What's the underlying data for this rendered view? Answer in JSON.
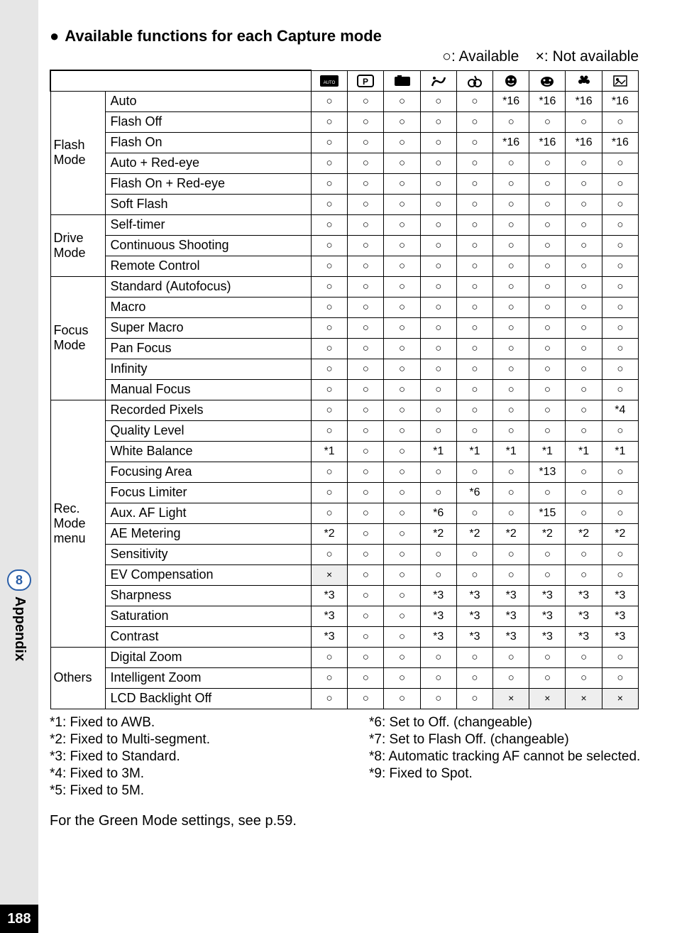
{
  "page_number": "188",
  "side_tab_number": "8",
  "side_tab_label": "Appendix",
  "title_bullet": "●",
  "title": "Available functions for each Capture mode",
  "legend_available_symbol": "○",
  "legend_available_text": ": Available",
  "legend_not_symbol": "×",
  "legend_not_text": ": Not available",
  "column_icons": [
    "AUTO PICT",
    "P",
    "Tv-like",
    "Night",
    "Movie",
    "Face1",
    "Face2",
    "Flower",
    "Frame"
  ],
  "groups": [
    {
      "name": "Flash Mode",
      "rows": [
        {
          "label": "Auto",
          "cells": [
            "○",
            "○",
            "○",
            "○",
            "○",
            "*16",
            "*16",
            "*16",
            "*16"
          ]
        },
        {
          "label": "Flash Off",
          "cells": [
            "○",
            "○",
            "○",
            "○",
            "○",
            "○",
            "○",
            "○",
            "○"
          ]
        },
        {
          "label": "Flash On",
          "cells": [
            "○",
            "○",
            "○",
            "○",
            "○",
            "*16",
            "*16",
            "*16",
            "*16"
          ]
        },
        {
          "label": "Auto + Red-eye",
          "cells": [
            "○",
            "○",
            "○",
            "○",
            "○",
            "○",
            "○",
            "○",
            "○"
          ]
        },
        {
          "label": "Flash On + Red-eye",
          "cells": [
            "○",
            "○",
            "○",
            "○",
            "○",
            "○",
            "○",
            "○",
            "○"
          ]
        },
        {
          "label": "Soft Flash",
          "cells": [
            "○",
            "○",
            "○",
            "○",
            "○",
            "○",
            "○",
            "○",
            "○"
          ]
        }
      ]
    },
    {
      "name": "Drive Mode",
      "rows": [
        {
          "label": "Self-timer",
          "cells": [
            "○",
            "○",
            "○",
            "○",
            "○",
            "○",
            "○",
            "○",
            "○"
          ]
        },
        {
          "label": "Continuous Shooting",
          "cells": [
            "○",
            "○",
            "○",
            "○",
            "○",
            "○",
            "○",
            "○",
            "○"
          ]
        },
        {
          "label": "Remote Control",
          "cells": [
            "○",
            "○",
            "○",
            "○",
            "○",
            "○",
            "○",
            "○",
            "○"
          ]
        }
      ]
    },
    {
      "name": "Focus Mode",
      "rows": [
        {
          "label": "Standard (Autofocus)",
          "cells": [
            "○",
            "○",
            "○",
            "○",
            "○",
            "○",
            "○",
            "○",
            "○"
          ]
        },
        {
          "label": "Macro",
          "cells": [
            "○",
            "○",
            "○",
            "○",
            "○",
            "○",
            "○",
            "○",
            "○"
          ]
        },
        {
          "label": "Super Macro",
          "cells": [
            "○",
            "○",
            "○",
            "○",
            "○",
            "○",
            "○",
            "○",
            "○"
          ]
        },
        {
          "label": "Pan Focus",
          "cells": [
            "○",
            "○",
            "○",
            "○",
            "○",
            "○",
            "○",
            "○",
            "○"
          ]
        },
        {
          "label": "Infinity",
          "cells": [
            "○",
            "○",
            "○",
            "○",
            "○",
            "○",
            "○",
            "○",
            "○"
          ]
        },
        {
          "label": "Manual Focus",
          "cells": [
            "○",
            "○",
            "○",
            "○",
            "○",
            "○",
            "○",
            "○",
            "○"
          ]
        }
      ]
    },
    {
      "name": "Rec. Mode menu",
      "rows": [
        {
          "label": "Recorded Pixels",
          "cells": [
            "○",
            "○",
            "○",
            "○",
            "○",
            "○",
            "○",
            "○",
            "*4"
          ]
        },
        {
          "label": "Quality Level",
          "cells": [
            "○",
            "○",
            "○",
            "○",
            "○",
            "○",
            "○",
            "○",
            "○"
          ]
        },
        {
          "label": "White Balance",
          "cells": [
            "*1",
            "○",
            "○",
            "*1",
            "*1",
            "*1",
            "*1",
            "*1",
            "*1"
          ]
        },
        {
          "label": "Focusing Area",
          "cells": [
            "○",
            "○",
            "○",
            "○",
            "○",
            "○",
            "*13",
            "○",
            "○"
          ]
        },
        {
          "label": "Focus Limiter",
          "cells": [
            "○",
            "○",
            "○",
            "○",
            "*6",
            "○",
            "○",
            "○",
            "○"
          ]
        },
        {
          "label": "Aux. AF Light",
          "cells": [
            "○",
            "○",
            "○",
            "*6",
            "○",
            "○",
            "*15",
            "○",
            "○"
          ]
        },
        {
          "label": "AE Metering",
          "cells": [
            "*2",
            "○",
            "○",
            "*2",
            "*2",
            "*2",
            "*2",
            "*2",
            "*2"
          ]
        },
        {
          "label": "Sensitivity",
          "cells": [
            "○",
            "○",
            "○",
            "○",
            "○",
            "○",
            "○",
            "○",
            "○"
          ]
        },
        {
          "label": "EV Compensation",
          "cells": [
            "×",
            "○",
            "○",
            "○",
            "○",
            "○",
            "○",
            "○",
            "○"
          ]
        },
        {
          "label": "Sharpness",
          "cells": [
            "*3",
            "○",
            "○",
            "*3",
            "*3",
            "*3",
            "*3",
            "*3",
            "*3"
          ]
        },
        {
          "label": "Saturation",
          "cells": [
            "*3",
            "○",
            "○",
            "*3",
            "*3",
            "*3",
            "*3",
            "*3",
            "*3"
          ]
        },
        {
          "label": "Contrast",
          "cells": [
            "*3",
            "○",
            "○",
            "*3",
            "*3",
            "*3",
            "*3",
            "*3",
            "*3"
          ]
        }
      ]
    },
    {
      "name": "Others",
      "rows": [
        {
          "label": "Digital Zoom",
          "cells": [
            "○",
            "○",
            "○",
            "○",
            "○",
            "○",
            "○",
            "○",
            "○"
          ]
        },
        {
          "label": "Intelligent Zoom",
          "cells": [
            "○",
            "○",
            "○",
            "○",
            "○",
            "○",
            "○",
            "○",
            "○"
          ]
        },
        {
          "label": "LCD Backlight Off",
          "cells": [
            "○",
            "○",
            "○",
            "○",
            "○",
            "×",
            "×",
            "×",
            "×"
          ]
        }
      ]
    }
  ],
  "footnotes_left": [
    "*1: Fixed to AWB.",
    "*2: Fixed to Multi-segment.",
    "*3: Fixed to Standard.",
    "*4: Fixed to 3M.",
    "*5: Fixed to 5M."
  ],
  "footnotes_right": [
    "*6: Set to Off. (changeable)",
    "*7: Set to Flash Off. (changeable)",
    "*8: Automatic tracking AF cannot be selected.",
    "*9: Fixed to Spot."
  ],
  "closing_note": "For the Green Mode settings, see p.59."
}
